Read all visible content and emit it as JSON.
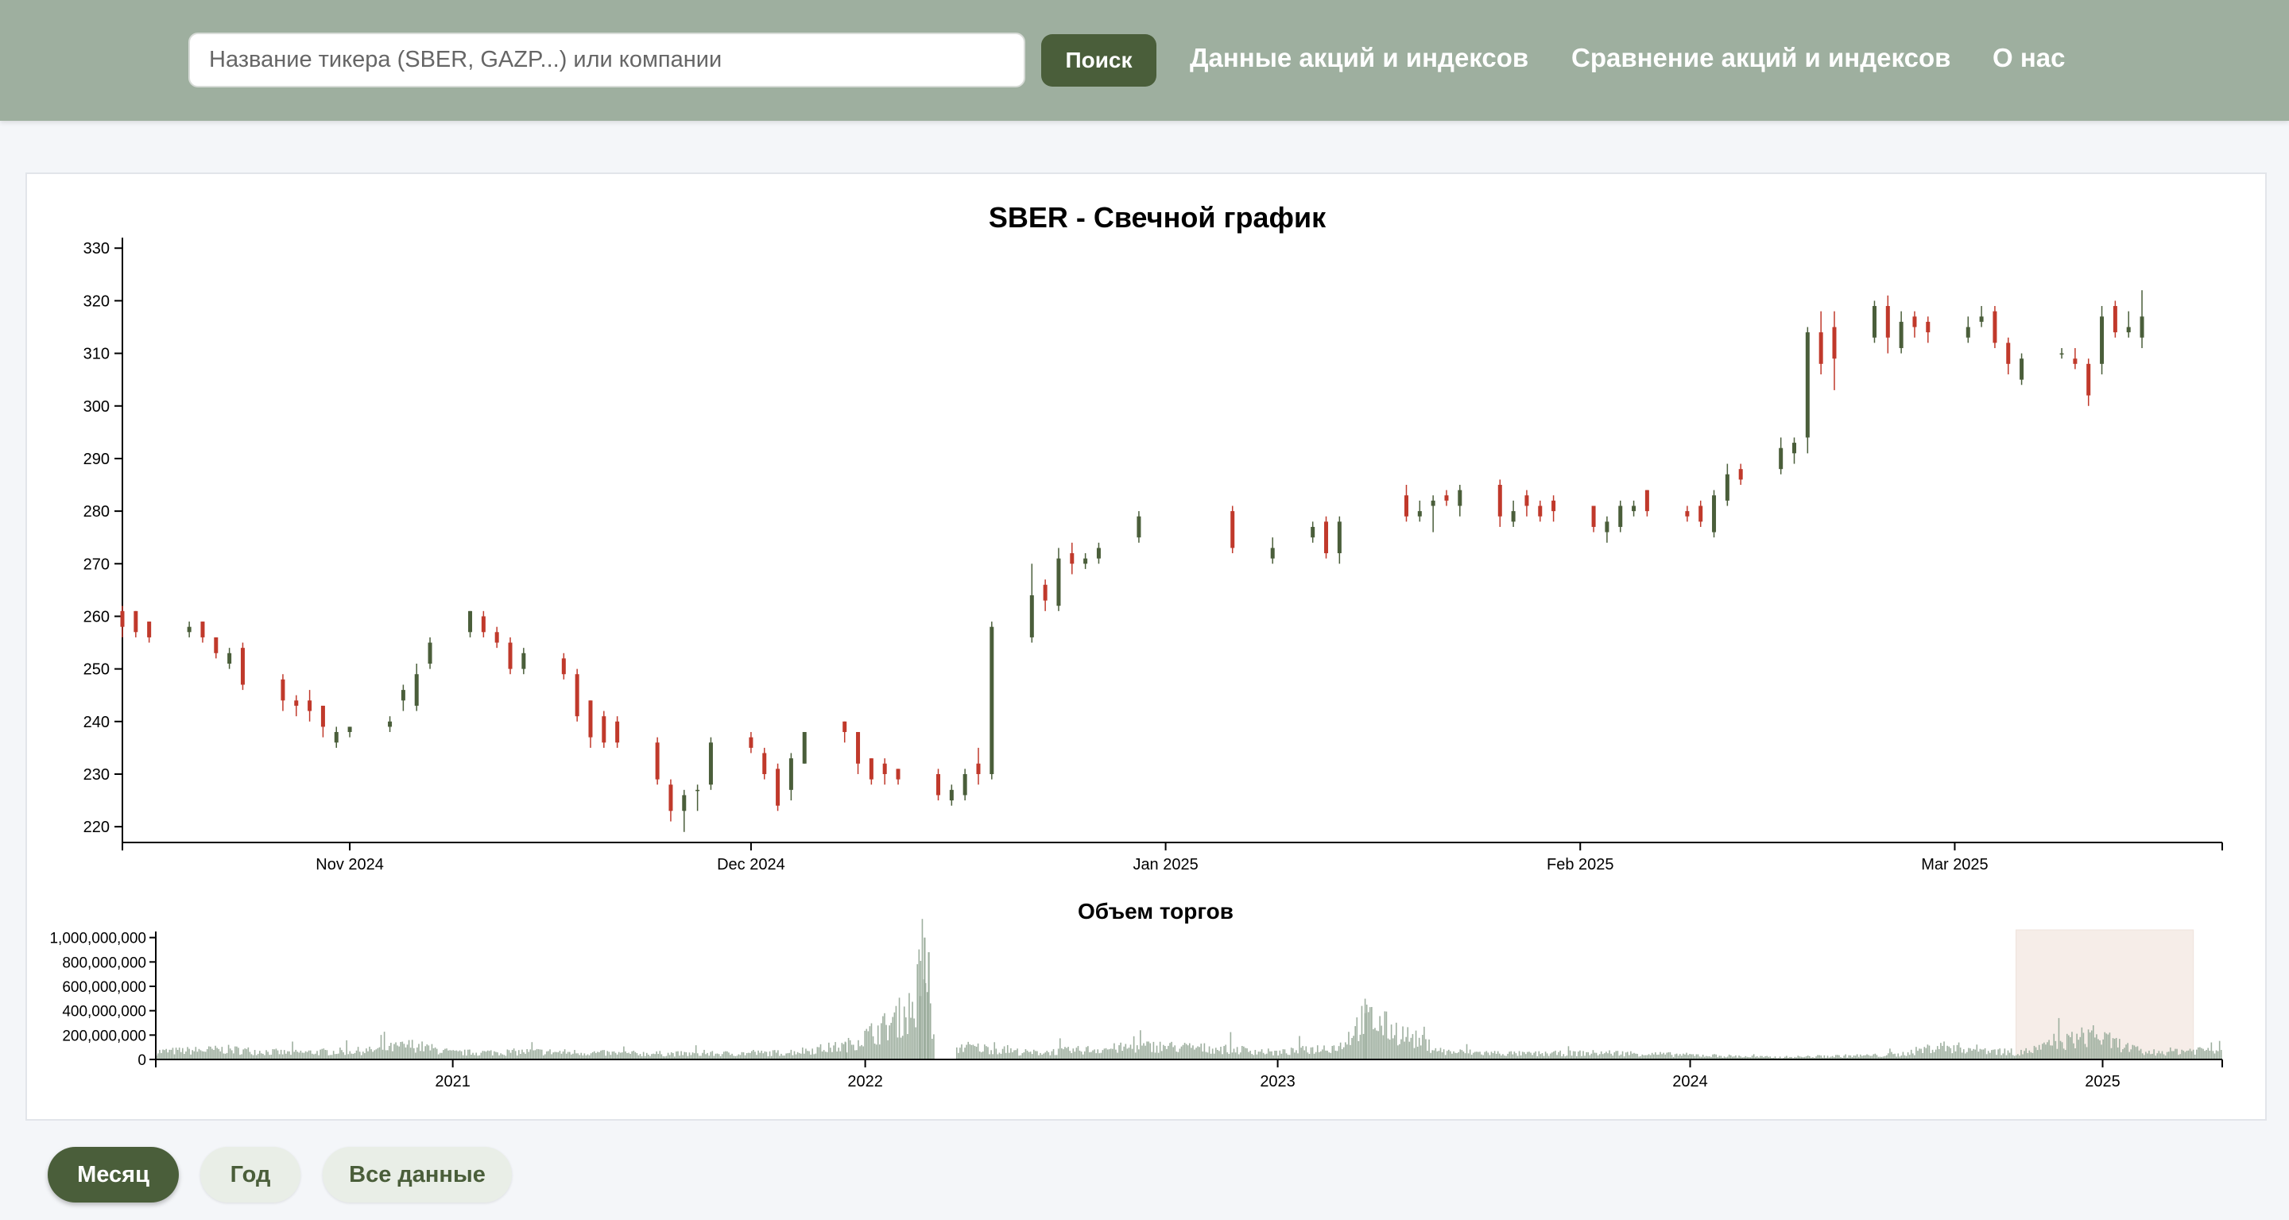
{
  "header": {
    "search_placeholder": "Название тикера (SBER, GAZP...) или компании",
    "search_button": "Поиск",
    "nav": [
      "Данные акций и индексов",
      "Сравнение акций и индексов",
      "О нас"
    ]
  },
  "range_buttons": [
    "Месяц",
    "Год",
    "Все данные"
  ],
  "colors": {
    "up": "#4a5e3a",
    "down": "#c0392b",
    "volume": "#9eaf9f",
    "brush": "#f6ede8"
  },
  "chart_data": [
    {
      "type": "candlestick",
      "title": "SBER - Свечной график",
      "ylim": [
        217,
        332
      ],
      "yticks": [
        220,
        230,
        240,
        250,
        260,
        270,
        280,
        290,
        300,
        310,
        320,
        330
      ],
      "xlim": [
        "2024-10-15",
        "2025-03-21"
      ],
      "xticks": [
        {
          "date": "2024-11-01",
          "label": "Nov 2024"
        },
        {
          "date": "2024-12-01",
          "label": "Dec 2024"
        },
        {
          "date": "2025-01-01",
          "label": "Jan 2025"
        },
        {
          "date": "2025-02-01",
          "label": "Feb 2025"
        },
        {
          "date": "2025-03-01",
          "label": "Mar 2025"
        }
      ],
      "candles": [
        {
          "date": "2024-10-15",
          "open": 261,
          "high": 262,
          "low": 256,
          "close": 258
        },
        {
          "date": "2024-10-16",
          "open": 261,
          "high": 261,
          "low": 256,
          "close": 257
        },
        {
          "date": "2024-10-17",
          "open": 259,
          "high": 259,
          "low": 255,
          "close": 256
        },
        {
          "date": "2024-10-20",
          "open": 257,
          "high": 259,
          "low": 256,
          "close": 258
        },
        {
          "date": "2024-10-21",
          "open": 259,
          "high": 259,
          "low": 255,
          "close": 256
        },
        {
          "date": "2024-10-22",
          "open": 256,
          "high": 256,
          "low": 252,
          "close": 253
        },
        {
          "date": "2024-10-23",
          "open": 251,
          "high": 254,
          "low": 250,
          "close": 253
        },
        {
          "date": "2024-10-24",
          "open": 254,
          "high": 255,
          "low": 246,
          "close": 247
        },
        {
          "date": "2024-10-27",
          "open": 248,
          "high": 249,
          "low": 242,
          "close": 244
        },
        {
          "date": "2024-10-28",
          "open": 244,
          "high": 245,
          "low": 241,
          "close": 243
        },
        {
          "date": "2024-10-29",
          "open": 244,
          "high": 246,
          "low": 240,
          "close": 242
        },
        {
          "date": "2024-10-30",
          "open": 243,
          "high": 243,
          "low": 237,
          "close": 239
        },
        {
          "date": "2024-10-31",
          "open": 236,
          "high": 239,
          "low": 235,
          "close": 238
        },
        {
          "date": "2024-11-01",
          "open": 238,
          "high": 239,
          "low": 237,
          "close": 239
        },
        {
          "date": "2024-11-04",
          "open": 239,
          "high": 241,
          "low": 238,
          "close": 240
        },
        {
          "date": "2024-11-05",
          "open": 244,
          "high": 247,
          "low": 242,
          "close": 246
        },
        {
          "date": "2024-11-06",
          "open": 243,
          "high": 251,
          "low": 242,
          "close": 249
        },
        {
          "date": "2024-11-07",
          "open": 251,
          "high": 256,
          "low": 250,
          "close": 255
        },
        {
          "date": "2024-11-10",
          "open": 257,
          "high": 261,
          "low": 256,
          "close": 261
        },
        {
          "date": "2024-11-11",
          "open": 260,
          "high": 261,
          "low": 256,
          "close": 257
        },
        {
          "date": "2024-11-12",
          "open": 257,
          "high": 258,
          "low": 254,
          "close": 255
        },
        {
          "date": "2024-11-13",
          "open": 255,
          "high": 256,
          "low": 249,
          "close": 250
        },
        {
          "date": "2024-11-14",
          "open": 250,
          "high": 254,
          "low": 249,
          "close": 253
        },
        {
          "date": "2024-11-17",
          "open": 252,
          "high": 253,
          "low": 248,
          "close": 249
        },
        {
          "date": "2024-11-18",
          "open": 249,
          "high": 250,
          "low": 240,
          "close": 241
        },
        {
          "date": "2024-11-19",
          "open": 244,
          "high": 244,
          "low": 235,
          "close": 237
        },
        {
          "date": "2024-11-20",
          "open": 241,
          "high": 242,
          "low": 235,
          "close": 236
        },
        {
          "date": "2024-11-21",
          "open": 240,
          "high": 241,
          "low": 235,
          "close": 236
        },
        {
          "date": "2024-11-24",
          "open": 236,
          "high": 237,
          "low": 228,
          "close": 229
        },
        {
          "date": "2024-11-25",
          "open": 228,
          "high": 229,
          "low": 221,
          "close": 223
        },
        {
          "date": "2024-11-26",
          "open": 223,
          "high": 227,
          "low": 219,
          "close": 226
        },
        {
          "date": "2024-11-27",
          "open": 227,
          "high": 228,
          "low": 223,
          "close": 227
        },
        {
          "date": "2024-11-28",
          "open": 228,
          "high": 237,
          "low": 227,
          "close": 236
        },
        {
          "date": "2024-12-01",
          "open": 237,
          "high": 238,
          "low": 234,
          "close": 235
        },
        {
          "date": "2024-12-02",
          "open": 234,
          "high": 235,
          "low": 229,
          "close": 230
        },
        {
          "date": "2024-12-03",
          "open": 231,
          "high": 232,
          "low": 223,
          "close": 224
        },
        {
          "date": "2024-12-04",
          "open": 227,
          "high": 234,
          "low": 225,
          "close": 233
        },
        {
          "date": "2024-12-05",
          "open": 232,
          "high": 238,
          "low": 232,
          "close": 238
        },
        {
          "date": "2024-12-08",
          "open": 240,
          "high": 240,
          "low": 236,
          "close": 238
        },
        {
          "date": "2024-12-09",
          "open": 238,
          "high": 238,
          "low": 230,
          "close": 232
        },
        {
          "date": "2024-12-10",
          "open": 233,
          "high": 233,
          "low": 228,
          "close": 229
        },
        {
          "date": "2024-12-11",
          "open": 232,
          "high": 233,
          "low": 228,
          "close": 230
        },
        {
          "date": "2024-12-12",
          "open": 231,
          "high": 231,
          "low": 228,
          "close": 229
        },
        {
          "date": "2024-12-15",
          "open": 230,
          "high": 231,
          "low": 225,
          "close": 226
        },
        {
          "date": "2024-12-16",
          "open": 225,
          "high": 228,
          "low": 224,
          "close": 227
        },
        {
          "date": "2024-12-17",
          "open": 226,
          "high": 231,
          "low": 225,
          "close": 230
        },
        {
          "date": "2024-12-18",
          "open": 232,
          "high": 235,
          "low": 228,
          "close": 230
        },
        {
          "date": "2024-12-19",
          "open": 230,
          "high": 259,
          "low": 229,
          "close": 258
        },
        {
          "date": "2024-12-22",
          "open": 256,
          "high": 270,
          "low": 255,
          "close": 264
        },
        {
          "date": "2024-12-23",
          "open": 266,
          "high": 267,
          "low": 261,
          "close": 263
        },
        {
          "date": "2024-12-24",
          "open": 262,
          "high": 273,
          "low": 261,
          "close": 271
        },
        {
          "date": "2024-12-25",
          "open": 272,
          "high": 274,
          "low": 268,
          "close": 270
        },
        {
          "date": "2024-12-26",
          "open": 270,
          "high": 272,
          "low": 269,
          "close": 271
        },
        {
          "date": "2024-12-27",
          "open": 271,
          "high": 274,
          "low": 270,
          "close": 273
        },
        {
          "date": "2024-12-30",
          "open": 275,
          "high": 280,
          "low": 274,
          "close": 279
        },
        {
          "date": "2025-01-06",
          "open": 280,
          "high": 281,
          "low": 272,
          "close": 273
        },
        {
          "date": "2025-01-09",
          "open": 271,
          "high": 275,
          "low": 270,
          "close": 273
        },
        {
          "date": "2025-01-12",
          "open": 275,
          "high": 278,
          "low": 274,
          "close": 277
        },
        {
          "date": "2025-01-13",
          "open": 278,
          "high": 279,
          "low": 271,
          "close": 272
        },
        {
          "date": "2025-01-14",
          "open": 272,
          "high": 279,
          "low": 270,
          "close": 278
        },
        {
          "date": "2025-01-19",
          "open": 283,
          "high": 285,
          "low": 278,
          "close": 279
        },
        {
          "date": "2025-01-20",
          "open": 279,
          "high": 282,
          "low": 278,
          "close": 280
        },
        {
          "date": "2025-01-21",
          "open": 281,
          "high": 283,
          "low": 276,
          "close": 282
        },
        {
          "date": "2025-01-22",
          "open": 283,
          "high": 284,
          "low": 281,
          "close": 282
        },
        {
          "date": "2025-01-23",
          "open": 281,
          "high": 285,
          "low": 279,
          "close": 284
        },
        {
          "date": "2025-01-26",
          "open": 285,
          "high": 286,
          "low": 277,
          "close": 279
        },
        {
          "date": "2025-01-27",
          "open": 278,
          "high": 282,
          "low": 277,
          "close": 280
        },
        {
          "date": "2025-01-28",
          "open": 283,
          "high": 284,
          "low": 279,
          "close": 281
        },
        {
          "date": "2025-01-29",
          "open": 281,
          "high": 282,
          "low": 278,
          "close": 279
        },
        {
          "date": "2025-01-30",
          "open": 282,
          "high": 283,
          "low": 278,
          "close": 280
        },
        {
          "date": "2025-02-02",
          "open": 281,
          "high": 281,
          "low": 276,
          "close": 277
        },
        {
          "date": "2025-02-03",
          "open": 276,
          "high": 279,
          "low": 274,
          "close": 278
        },
        {
          "date": "2025-02-04",
          "open": 277,
          "high": 282,
          "low": 276,
          "close": 281
        },
        {
          "date": "2025-02-05",
          "open": 280,
          "high": 282,
          "low": 279,
          "close": 281
        },
        {
          "date": "2025-02-06",
          "open": 284,
          "high": 284,
          "low": 279,
          "close": 280
        },
        {
          "date": "2025-02-09",
          "open": 280,
          "high": 281,
          "low": 278,
          "close": 279
        },
        {
          "date": "2025-02-10",
          "open": 281,
          "high": 282,
          "low": 277,
          "close": 278
        },
        {
          "date": "2025-02-11",
          "open": 276,
          "high": 284,
          "low": 275,
          "close": 283
        },
        {
          "date": "2025-02-12",
          "open": 282,
          "high": 289,
          "low": 281,
          "close": 287
        },
        {
          "date": "2025-02-13",
          "open": 288,
          "high": 289,
          "low": 285,
          "close": 286
        },
        {
          "date": "2025-02-16",
          "open": 288,
          "high": 294,
          "low": 287,
          "close": 292
        },
        {
          "date": "2025-02-17",
          "open": 291,
          "high": 294,
          "low": 289,
          "close": 293
        },
        {
          "date": "2025-02-18",
          "open": 294,
          "high": 315,
          "low": 291,
          "close": 314
        },
        {
          "date": "2025-02-19",
          "open": 314,
          "high": 318,
          "low": 306,
          "close": 308
        },
        {
          "date": "2025-02-20",
          "open": 315,
          "high": 318,
          "low": 303,
          "close": 309
        },
        {
          "date": "2025-02-23",
          "open": 313,
          "high": 320,
          "low": 312,
          "close": 319
        },
        {
          "date": "2025-02-24",
          "open": 319,
          "high": 321,
          "low": 310,
          "close": 313
        },
        {
          "date": "2025-02-25",
          "open": 311,
          "high": 318,
          "low": 310,
          "close": 316
        },
        {
          "date": "2025-02-26",
          "open": 317,
          "high": 318,
          "low": 313,
          "close": 315
        },
        {
          "date": "2025-02-27",
          "open": 316,
          "high": 317,
          "low": 312,
          "close": 314
        },
        {
          "date": "2025-03-02",
          "open": 313,
          "high": 317,
          "low": 312,
          "close": 315
        },
        {
          "date": "2025-03-03",
          "open": 316,
          "high": 319,
          "low": 315,
          "close": 317
        },
        {
          "date": "2025-03-04",
          "open": 318,
          "high": 319,
          "low": 311,
          "close": 312
        },
        {
          "date": "2025-03-05",
          "open": 312,
          "high": 313,
          "low": 306,
          "close": 308
        },
        {
          "date": "2025-03-06",
          "open": 305,
          "high": 310,
          "low": 304,
          "close": 309
        },
        {
          "date": "2025-03-09",
          "open": 310,
          "high": 311,
          "low": 309,
          "close": 310
        },
        {
          "date": "2025-03-10",
          "open": 309,
          "high": 311,
          "low": 307,
          "close": 308
        },
        {
          "date": "2025-03-11",
          "open": 308,
          "high": 309,
          "low": 300,
          "close": 302
        },
        {
          "date": "2025-03-12",
          "open": 308,
          "high": 319,
          "low": 306,
          "close": 317
        },
        {
          "date": "2025-03-13",
          "open": 319,
          "high": 320,
          "low": 313,
          "close": 314
        },
        {
          "date": "2025-03-14",
          "open": 314,
          "high": 318,
          "low": 313,
          "close": 315
        },
        {
          "date": "2025-03-15",
          "open": 313,
          "high": 322,
          "low": 311,
          "close": 317
        }
      ]
    },
    {
      "type": "bar",
      "title": "Объем торгов",
      "ylim": [
        0,
        1050000000
      ],
      "yticks": [
        {
          "value": 0,
          "label": "0"
        },
        {
          "value": 200000000,
          "label": "200,000,000"
        },
        {
          "value": 400000000,
          "label": "400,000,000"
        },
        {
          "value": 600000000,
          "label": "600,000,000"
        },
        {
          "value": 800000000,
          "label": "800,000,000"
        },
        {
          "value": 1000000000,
          "label": "1,000,000,000"
        }
      ],
      "xlim": [
        2020.28,
        2025.29
      ],
      "xticks": [
        {
          "value": 2021,
          "label": "2021"
        },
        {
          "value": 2022,
          "label": "2022"
        },
        {
          "value": 2023,
          "label": "2023"
        },
        {
          "value": 2024,
          "label": "2024"
        },
        {
          "value": 2025,
          "label": "2025"
        }
      ],
      "brush_range": [
        2024.79,
        2025.22
      ],
      "volume_profile": [
        [
          2020.28,
          70000000
        ],
        [
          2020.45,
          90000000
        ],
        [
          2020.6,
          60000000
        ],
        [
          2020.8,
          80000000
        ],
        [
          2020.9,
          130000000
        ],
        [
          2021.0,
          60000000
        ],
        [
          2021.2,
          70000000
        ],
        [
          2021.4,
          55000000
        ],
        [
          2021.6,
          50000000
        ],
        [
          2021.8,
          60000000
        ],
        [
          2021.95,
          120000000
        ],
        [
          2022.05,
          300000000
        ],
        [
          2022.12,
          480000000
        ],
        [
          2022.14,
          1000000000
        ],
        [
          2022.16,
          250000000
        ],
        [
          2022.2,
          0
        ],
        [
          2022.23,
          120000000
        ],
        [
          2022.4,
          60000000
        ],
        [
          2022.7,
          120000000
        ],
        [
          2022.9,
          90000000
        ],
        [
          2023.0,
          60000000
        ],
        [
          2023.15,
          120000000
        ],
        [
          2023.21,
          380000000
        ],
        [
          2023.4,
          70000000
        ],
        [
          2023.6,
          50000000
        ],
        [
          2023.8,
          60000000
        ],
        [
          2024.0,
          40000000
        ],
        [
          2024.2,
          20000000
        ],
        [
          2024.5,
          40000000
        ],
        [
          2024.6,
          120000000
        ],
        [
          2024.8,
          60000000
        ],
        [
          2024.97,
          220000000
        ],
        [
          2025.1,
          60000000
        ],
        [
          2025.29,
          100000000
        ]
      ]
    }
  ]
}
